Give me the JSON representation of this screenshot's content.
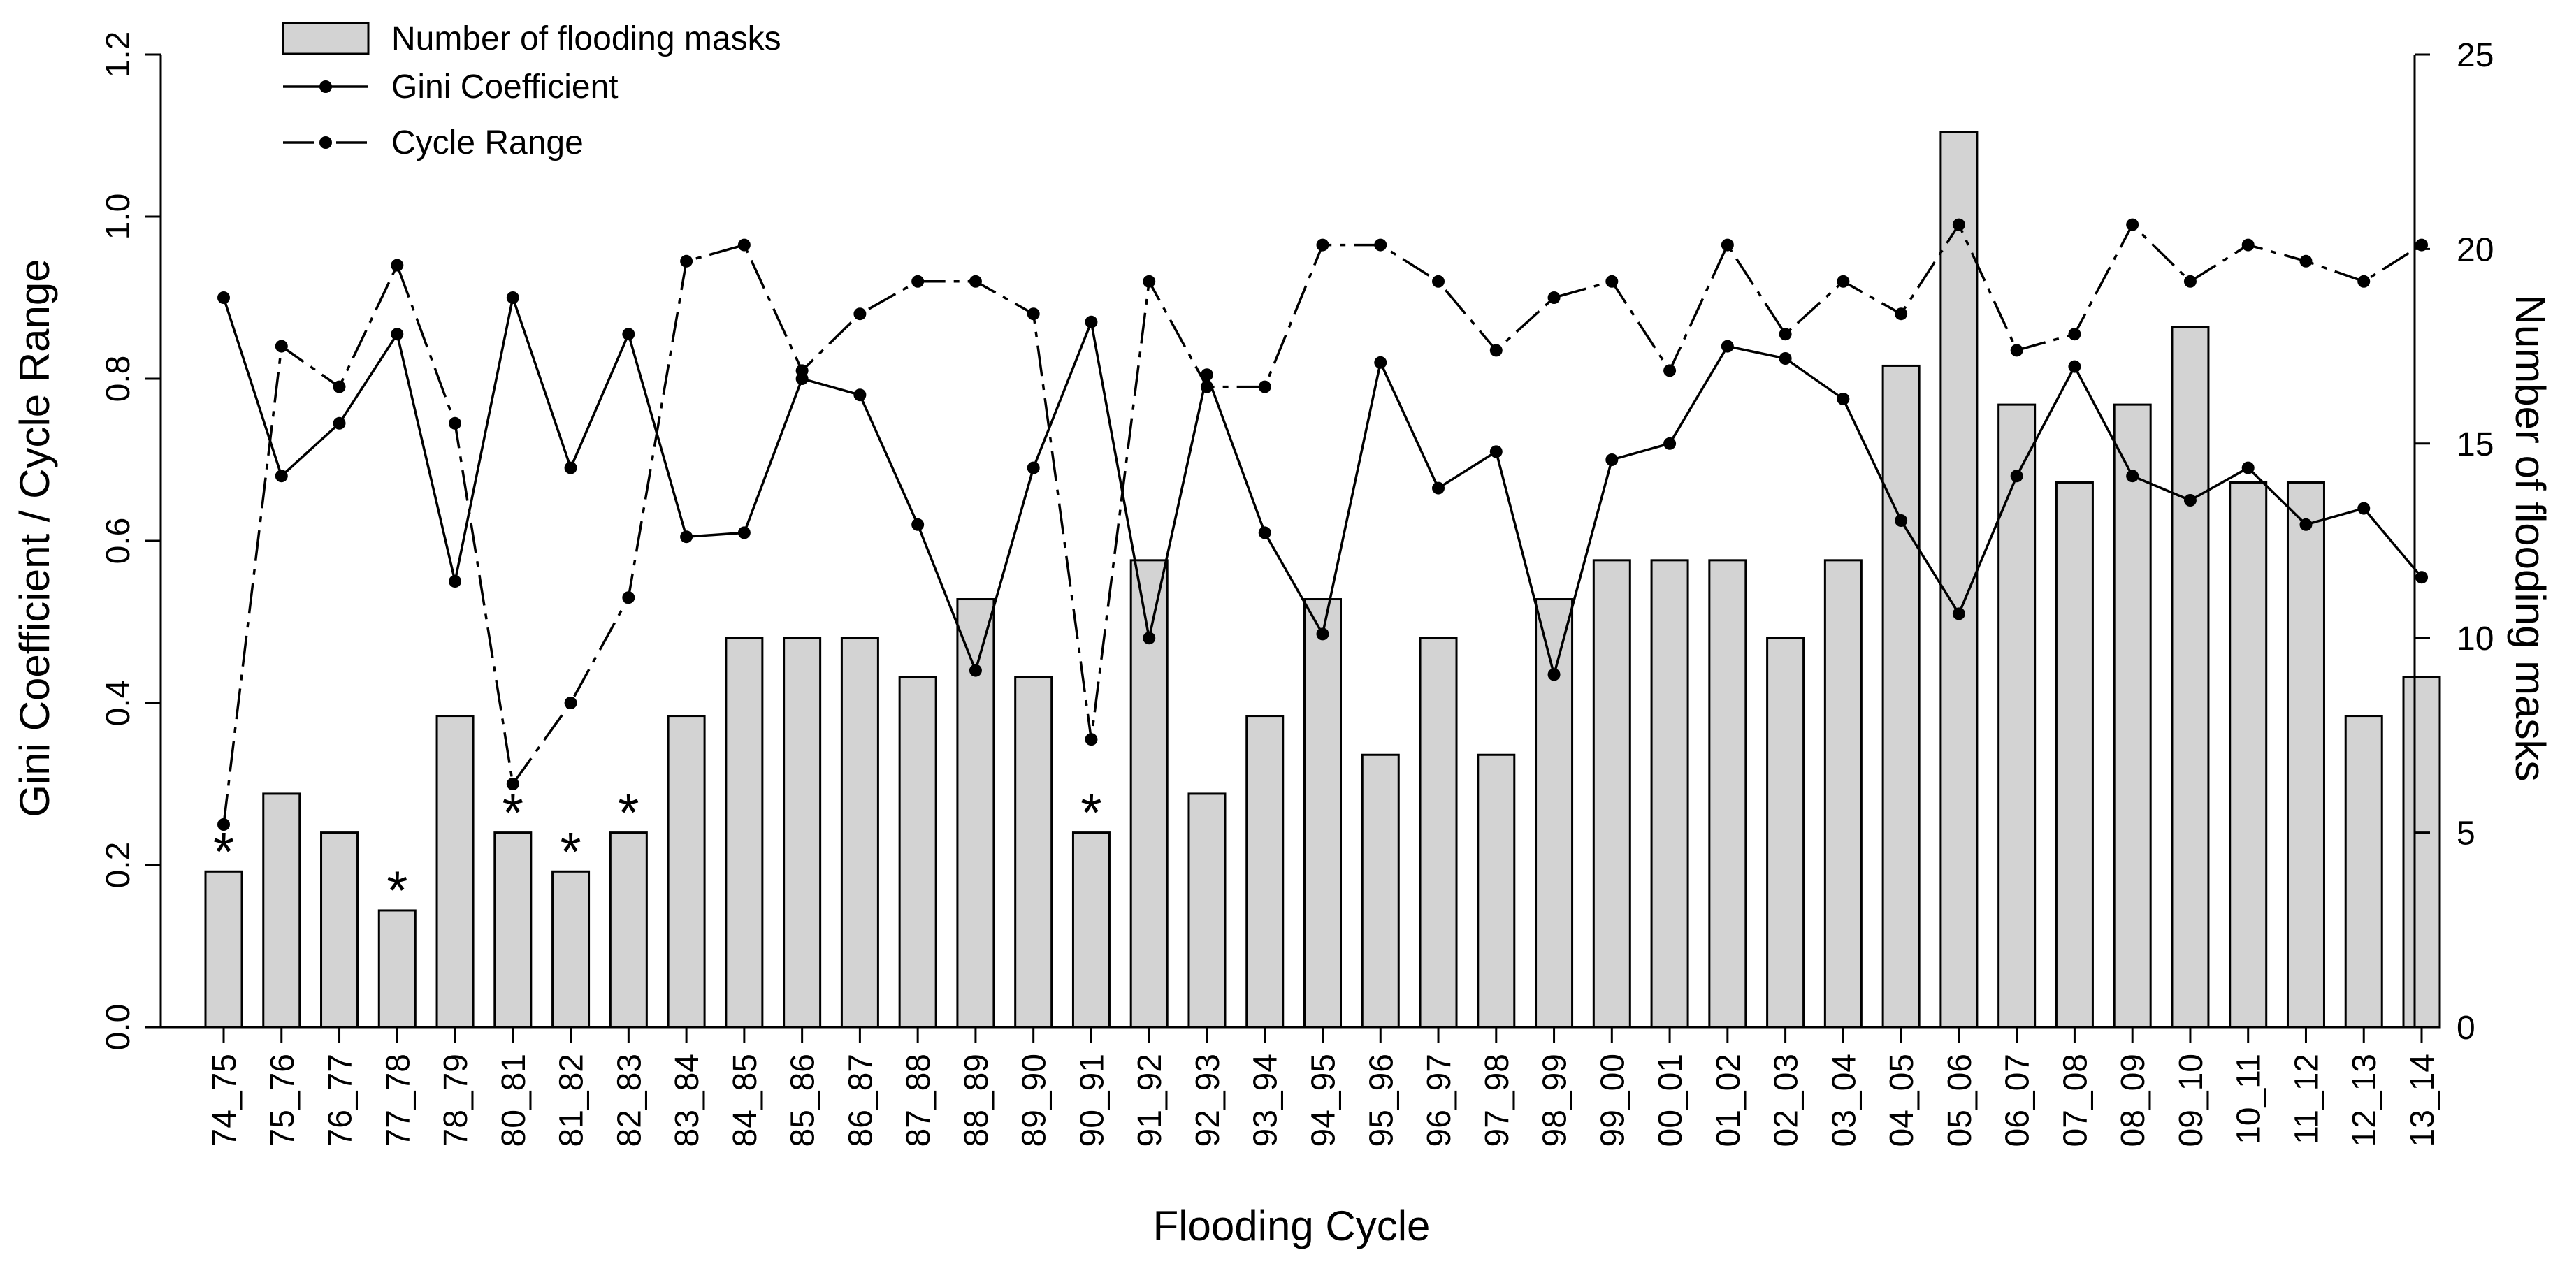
{
  "chart_data": {
    "type": "bar",
    "xlabel": "Flooding Cycle",
    "ylabel_left": "Gini Coefficient / Cycle Range",
    "ylabel_right": "Number of flooding masks",
    "ylim_left": [
      0,
      1.2
    ],
    "ylim_right": [
      0,
      25
    ],
    "yticks_left": [
      "0.0",
      "0.2",
      "0.4",
      "0.6",
      "0.8",
      "1.0",
      "1.2"
    ],
    "yticks_right": [
      "0",
      "5",
      "10",
      "15",
      "20",
      "25"
    ],
    "categories": [
      "74_75",
      "75_76",
      "76_77",
      "77_78",
      "78_79",
      "80_81",
      "81_82",
      "82_83",
      "83_84",
      "84_85",
      "85_86",
      "86_87",
      "87_88",
      "88_89",
      "89_90",
      "90_91",
      "91_92",
      "92_93",
      "93_94",
      "94_95",
      "95_96",
      "96_97",
      "97_98",
      "98_99",
      "99_00",
      "00_01",
      "01_02",
      "02_03",
      "03_04",
      "04_05",
      "05_06",
      "06_07",
      "07_08",
      "08_09",
      "09_10",
      "10_11",
      "11_12",
      "12_13",
      "13_14"
    ],
    "legend": [
      "Number of flooding masks",
      "Gini Coefficient",
      "Cycle Range"
    ],
    "legend_position": "top-left",
    "grid": false,
    "series": [
      {
        "name": "Number of flooding masks",
        "type": "bar",
        "axis": "right",
        "values": [
          4,
          6,
          5,
          3,
          8,
          5,
          4,
          5,
          8,
          10,
          10,
          10,
          9,
          11,
          9,
          5,
          12,
          6,
          8,
          11,
          7,
          10,
          7,
          11,
          12,
          12,
          12,
          10,
          12,
          17,
          23,
          16,
          14,
          16,
          18,
          14,
          14,
          8,
          9
        ]
      },
      {
        "name": "Gini Coefficient",
        "type": "line",
        "axis": "left",
        "values": [
          0.9,
          0.68,
          0.745,
          0.855,
          0.55,
          0.9,
          0.69,
          0.855,
          0.605,
          0.61,
          0.8,
          0.78,
          0.62,
          0.44,
          0.69,
          0.87,
          0.48,
          0.805,
          0.61,
          0.485,
          0.82,
          0.665,
          0.71,
          0.435,
          0.7,
          0.72,
          0.84,
          0.825,
          0.775,
          0.625,
          0.51,
          0.68,
          0.815,
          0.68,
          0.65,
          0.69,
          0.62,
          0.64,
          0.555
        ]
      },
      {
        "name": "Cycle Range",
        "type": "line",
        "axis": "left",
        "values": [
          0.25,
          0.84,
          0.79,
          0.94,
          0.745,
          0.3,
          0.4,
          0.53,
          0.945,
          0.965,
          0.81,
          0.88,
          0.92,
          0.92,
          0.88,
          0.355,
          0.92,
          0.79,
          0.79,
          0.965,
          0.965,
          0.92,
          0.835,
          0.9,
          0.92,
          0.81,
          0.965,
          0.855,
          0.92,
          0.88,
          0.99,
          0.835,
          0.855,
          0.99,
          0.92,
          0.965,
          0.945,
          0.92,
          0.965
        ]
      }
    ],
    "annotations": [
      {
        "category": "74_75",
        "text": "*"
      },
      {
        "category": "77_78",
        "text": "*"
      },
      {
        "category": "80_81",
        "text": "*"
      },
      {
        "category": "81_82",
        "text": "*"
      },
      {
        "category": "82_83",
        "text": "*"
      },
      {
        "category": "90_91",
        "text": "*"
      }
    ]
  }
}
